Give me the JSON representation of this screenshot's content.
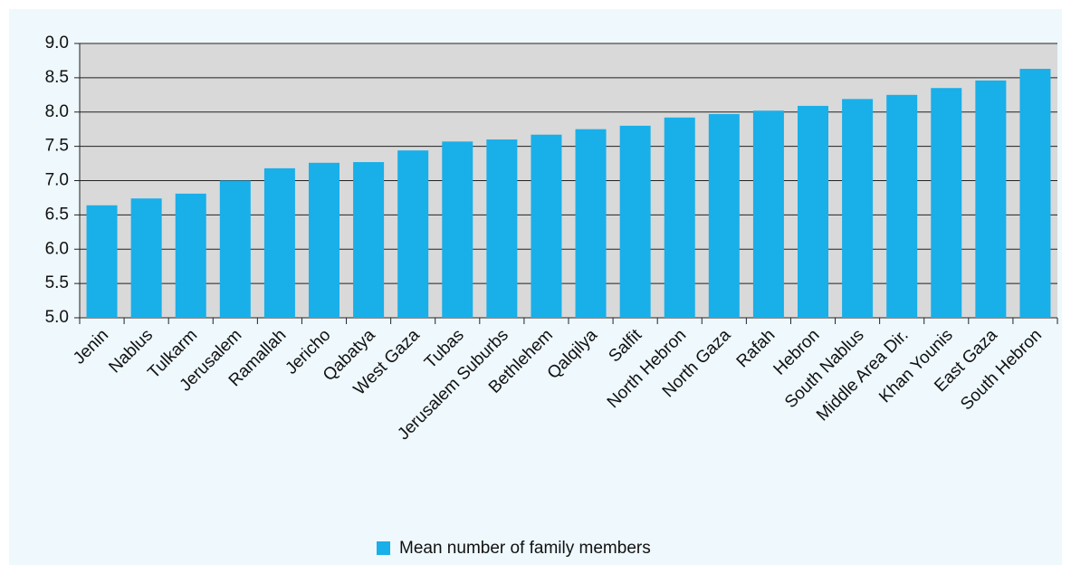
{
  "chart_data": {
    "type": "bar",
    "categories": [
      "Jenin",
      "Nablus",
      "Tulkarm",
      "Jerusalem",
      "Ramallah",
      "Jericho",
      "Qabatya",
      "West Gaza",
      "Tubas",
      "Jerusalem Suburbs",
      "Bethlehem",
      "Qalqilya",
      "Salfit",
      "North Hebron",
      "North Gaza",
      "Rafah",
      "Hebron",
      "South Nablus",
      "Middle Area Dir.",
      "Khan Younis",
      "East Gaza",
      "South Hebron"
    ],
    "series": [
      {
        "name": "Mean number of family members",
        "color": "#19afe9",
        "values": [
          6.64,
          6.74,
          6.81,
          7.0,
          7.18,
          7.26,
          7.27,
          7.44,
          7.57,
          7.6,
          7.67,
          7.75,
          7.8,
          7.92,
          7.97,
          8.02,
          8.09,
          8.19,
          8.25,
          8.35,
          8.46,
          8.63
        ]
      }
    ],
    "ylim": [
      5,
      9
    ],
    "yticks": [
      {
        "value": 5,
        "label": "5.0"
      },
      5.5,
      {
        "value": 6,
        "label": "6.0"
      },
      6.5,
      {
        "value": 7,
        "label": "7.0"
      },
      7.5,
      {
        "value": 8,
        "label": "8.0"
      },
      8.5,
      {
        "value": 9,
        "label": "9.0"
      }
    ],
    "grid": true,
    "legend": "bottom"
  }
}
